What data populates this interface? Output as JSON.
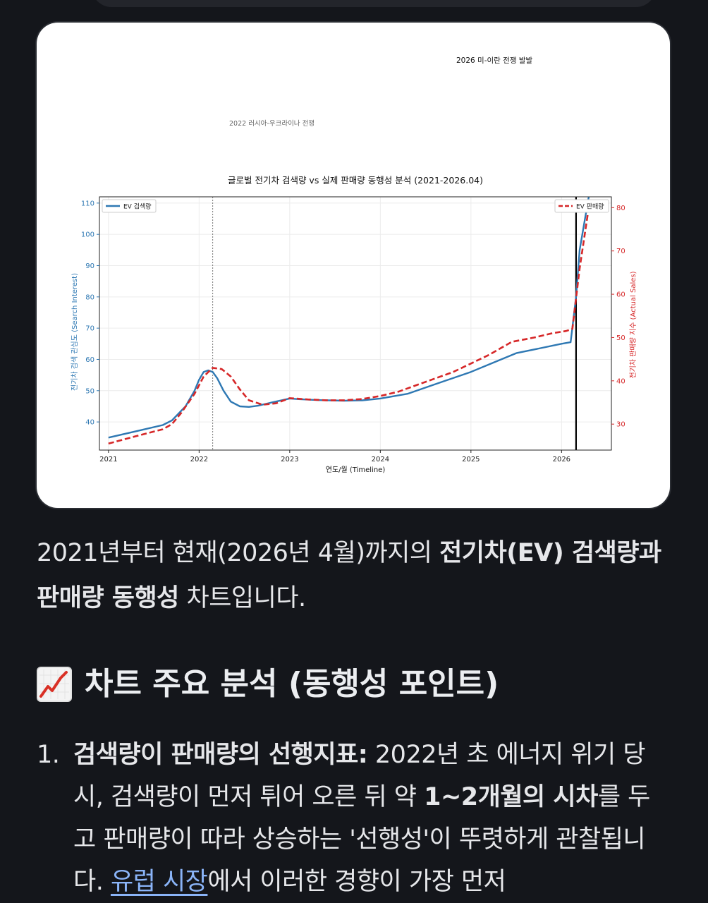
{
  "chart_data": {
    "type": "line",
    "title": "글로벌 전기차 검색량 vs 실제 판매량 동행성 분석 (2021-2026.04)",
    "xlabel": "연도/월 (Timeline)",
    "ylabel_left": "전기차 검색 관심도 (Search Interest)",
    "ylabel_right": "전기차 판매량 지수 (Actual Sales)",
    "x_ticks": [
      "2021",
      "2022",
      "2023",
      "2024",
      "2025",
      "2026"
    ],
    "y_left_ticks": [
      "40",
      "50",
      "60",
      "70",
      "80",
      "90",
      "100",
      "110"
    ],
    "y_right_ticks": [
      "30",
      "40",
      "50",
      "60",
      "70",
      "80"
    ],
    "xlim": [
      2020.9,
      2026.55
    ],
    "ylim_left": [
      31,
      112
    ],
    "ylim_right": [
      24,
      82.5
    ],
    "grid": true,
    "legend_left": "top-left",
    "legend_right": "top-right",
    "series": [
      {
        "name": "EV 검색량",
        "axis": "left",
        "style": "solid",
        "color": "#2e78b3",
        "x": [
          2021.0,
          2021.3,
          2021.6,
          2021.7,
          2021.85,
          2021.95,
          2022.0,
          2022.05,
          2022.1,
          2022.15,
          2022.2,
          2022.27,
          2022.35,
          2022.45,
          2022.55,
          2022.65,
          2022.8,
          2023.0,
          2023.1,
          2023.3,
          2023.6,
          2023.8,
          2024.0,
          2024.3,
          2024.6,
          2025.0,
          2025.25,
          2025.5,
          2025.75,
          2026.0,
          2026.1,
          2026.16,
          2026.2,
          2026.3
        ],
        "y": [
          35,
          37,
          39,
          40.5,
          45,
          50,
          53.5,
          56,
          56.5,
          56,
          54,
          50,
          46.5,
          45,
          44.8,
          45.2,
          46.2,
          47.5,
          47.3,
          47.0,
          46.8,
          46.9,
          47.5,
          49,
          52,
          56,
          59,
          62,
          63.5,
          65,
          65.5,
          80,
          95,
          112
        ]
      },
      {
        "name": "EV 판매량",
        "axis": "right",
        "style": "dashed",
        "color": "#d62728",
        "x": [
          2021.0,
          2021.3,
          2021.6,
          2021.7,
          2021.8,
          2021.95,
          2022.05,
          2022.15,
          2022.25,
          2022.35,
          2022.45,
          2022.55,
          2022.7,
          2022.85,
          2023.0,
          2023.2,
          2023.4,
          2023.6,
          2023.8,
          2024.0,
          2024.2,
          2024.4,
          2024.6,
          2024.8,
          2025.0,
          2025.2,
          2025.45,
          2025.7,
          2025.9,
          2026.05,
          2026.12,
          2026.2,
          2026.3
        ],
        "y": [
          25.5,
          27.2,
          28.8,
          30,
          32.5,
          37,
          41,
          43,
          42.7,
          41,
          38,
          35.5,
          34.5,
          34.8,
          36,
          35.7,
          35.5,
          35.5,
          35.8,
          36.5,
          37.5,
          39,
          40.5,
          42,
          44,
          46,
          49,
          50,
          51,
          51.5,
          52,
          66,
          80
        ]
      }
    ],
    "annotations": [
      {
        "label": "2022 러시아-우크라이나 전쟁",
        "x": 2022.15,
        "line": "dotted"
      },
      {
        "label": "2026 미-이란 전쟁 발발",
        "x": 2026.16,
        "line": "solid"
      }
    ]
  },
  "summary": {
    "part1": "2021년부터 현재(2026년 4월)까지의 ",
    "bold1": "전기차(EV) 검색량과 판매량 동행성",
    "part2": " 차트입니다."
  },
  "section": {
    "icon": "chart-increasing-icon",
    "title": "차트 주요 분석 (동행성 포인트)"
  },
  "list": [
    {
      "number": "1.",
      "bold_title": "검색량이 판매량의 선행지표:",
      "text1": " 2022년 초 에너지 위기 당시, 검색량이 먼저 튀어 오른 뒤 약 ",
      "bold2": "1~2개월의 시차",
      "text2": "를 두고 판매량이 따라 상승하는 '선행성'이 뚜렷하게 관찰됩니다. ",
      "link": "유럽 시장",
      "text3": "에서 이러한 경향이 가장 먼저"
    }
  ]
}
